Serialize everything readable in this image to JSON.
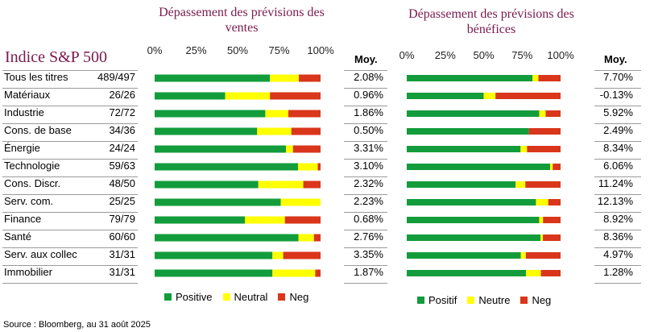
{
  "index_title": "Indice S&P 500",
  "moy_header": "Moy.",
  "colors": {
    "positive": "#139c3c",
    "neutral": "#ffff00",
    "neg": "#d9361b",
    "title": "#7a1a4d"
  },
  "rows": [
    {
      "label": "Tous les titres",
      "count": "489/497"
    },
    {
      "label": "Matériaux",
      "count": "26/26"
    },
    {
      "label": "Industrie",
      "count": "72/72"
    },
    {
      "label": "Cons. de base",
      "count": "34/36"
    },
    {
      "label": "Énergie",
      "count": "24/24"
    },
    {
      "label": "Technologie",
      "count": "59/63"
    },
    {
      "label": "Cons. Discr.",
      "count": "48/50"
    },
    {
      "label": "Serv. com.",
      "count": "25/25"
    },
    {
      "label": "Finance",
      "count": "79/79"
    },
    {
      "label": "Santé",
      "count": "60/60"
    },
    {
      "label": "Serv. aux collec",
      "count": "31/31"
    },
    {
      "label": "Immobilier",
      "count": "31/31"
    }
  ],
  "chart_data": [
    {
      "type": "bar",
      "stacked": true,
      "orientation": "horizontal",
      "title": "Dépassement des prévisions des ventes",
      "x_ticks": [
        "0%",
        "25%",
        "50%",
        "75%",
        "100%"
      ],
      "xlim": [
        0,
        100
      ],
      "categories": [
        "Tous les titres",
        "Matériaux",
        "Industrie",
        "Cons. de base",
        "Énergie",
        "Technologie",
        "Cons. Discr.",
        "Serv. com.",
        "Finance",
        "Santé",
        "Serv. aux collec",
        "Immobilier"
      ],
      "series": [
        {
          "name": "Positive",
          "values": [
            69.5,
            42.5,
            66.7,
            61.8,
            79.2,
            86.4,
            62.5,
            76.0,
            54.4,
            86.7,
            71.0,
            71.0
          ]
        },
        {
          "name": "Neutral",
          "values": [
            17.4,
            27.0,
            13.9,
            20.6,
            4.2,
            11.9,
            27.1,
            24.0,
            24.1,
            9.3,
            6.5,
            25.8
          ]
        },
        {
          "name": "Neg",
          "values": [
            13.1,
            30.5,
            19.4,
            17.6,
            16.6,
            1.7,
            10.4,
            0,
            21.5,
            4.0,
            22.5,
            3.2
          ]
        }
      ],
      "average_label": "Moy.",
      "averages": [
        "2.08%",
        "0.96%",
        "1.86%",
        "0.50%",
        "3.31%",
        "3.10%",
        "2.32%",
        "2.23%",
        "0.68%",
        "2.76%",
        "3.35%",
        "1.87%"
      ],
      "legend": [
        "Positive",
        "Neutral",
        "Neg"
      ]
    },
    {
      "type": "bar",
      "stacked": true,
      "orientation": "horizontal",
      "title": "Dépassement des prévisions des bénéfices",
      "x_ticks": [
        "0%",
        "25%",
        "50%",
        "75%",
        "100%"
      ],
      "xlim": [
        0,
        100
      ],
      "categories": [
        "Tous les titres",
        "Matériaux",
        "Industrie",
        "Cons. de base",
        "Énergie",
        "Technologie",
        "Cons. Discr.",
        "Serv. com.",
        "Finance",
        "Santé",
        "Serv. aux collec",
        "Immobilier"
      ],
      "series": [
        {
          "name": "Positif",
          "values": [
            81.8,
            50.0,
            86.1,
            79.4,
            74.0,
            93.2,
            70.8,
            84.0,
            86.1,
            87.0,
            74.2,
            77.5
          ]
        },
        {
          "name": "Neutre",
          "values": [
            3.8,
            7.7,
            4.2,
            0,
            4.2,
            1.7,
            6.3,
            8.0,
            2.5,
            1.5,
            3.2,
            9.7
          ]
        },
        {
          "name": "Neg",
          "values": [
            14.4,
            42.3,
            9.7,
            20.6,
            21.8,
            5.1,
            22.9,
            8.0,
            11.4,
            11.5,
            22.6,
            12.8
          ]
        }
      ],
      "average_label": "Moy.",
      "averages": [
        "7.70%",
        "-0.13%",
        "5.92%",
        "2.49%",
        "8.34%",
        "6.06%",
        "11.24%",
        "12.13%",
        "8.92%",
        "8.36%",
        "4.97%",
        "1.28%"
      ],
      "legend": [
        "Positif",
        "Neutre",
        "Neg"
      ]
    }
  ],
  "source": "Source : Bloomberg, au 31 août 2025"
}
